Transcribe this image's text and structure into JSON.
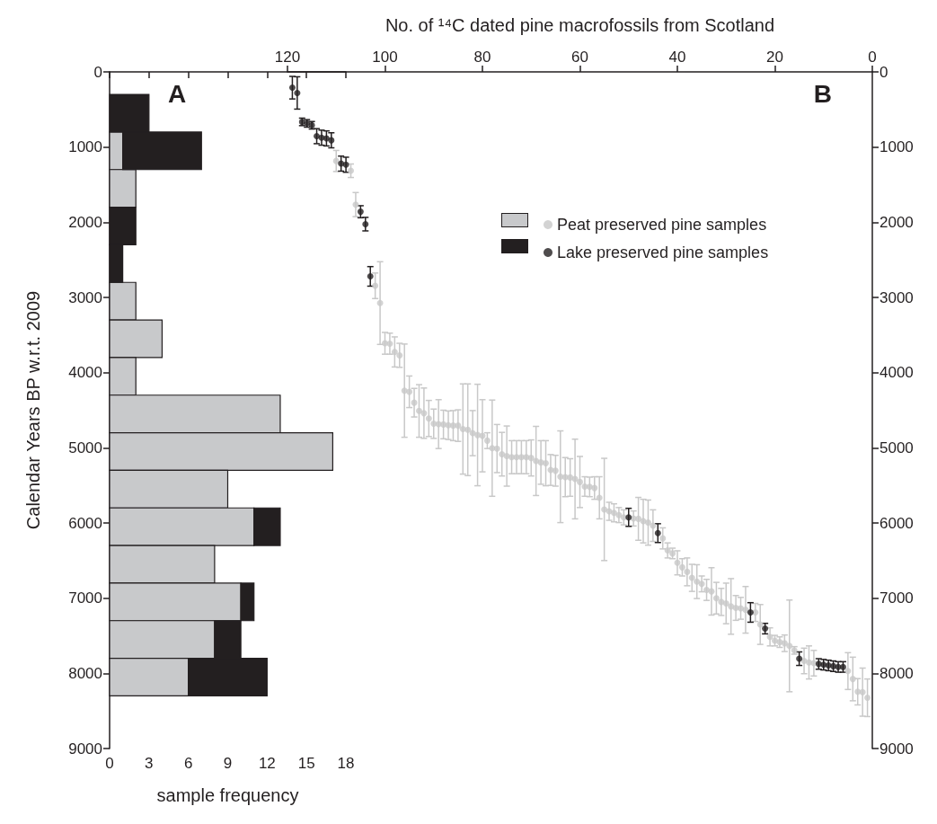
{
  "chart_data": [
    {
      "type": "bar",
      "orientation": "horizontal",
      "stacked": true,
      "xlabel": "sample frequency",
      "ylabel": "Calendar Years BP w.r.t. 2009",
      "x": [
        550,
        1050,
        1550,
        2050,
        2550,
        3050,
        3550,
        4050,
        4550,
        5050,
        5550,
        6050,
        6550,
        7050,
        7550,
        8050
      ],
      "series": [
        {
          "color": "#c8c9cb",
          "values": [
            0,
            1,
            2,
            0,
            0,
            2,
            4,
            2,
            13,
            17,
            9,
            11,
            8,
            10,
            8,
            6
          ]
        },
        {
          "color": "#231f20",
          "values": [
            3,
            6,
            0,
            2,
            1,
            0,
            0,
            0,
            0,
            0,
            0,
            2,
            0,
            1,
            2,
            6
          ]
        }
      ],
      "xlim": [
        0,
        18
      ],
      "xticks": [
        0,
        3,
        6,
        9,
        12,
        15,
        18
      ],
      "ylim": [
        9000,
        0
      ],
      "yticks": [
        0,
        1000,
        2000,
        3000,
        4000,
        5000,
        6000,
        7000,
        8000,
        9000
      ],
      "grid": false,
      "annotations": [
        "A"
      ]
    },
    {
      "type": "scatter",
      "xlabel": "No. of ¹⁴C dated pine macrofossils from Scotland",
      "marker": "circle",
      "series": [
        {
          "name": "Peat preserved pine samples",
          "color": "#c8c8c8",
          "x": [
            110,
            107,
            106,
            102,
            101,
            100,
            99,
            98,
            97,
            96,
            95,
            94,
            93,
            92,
            91,
            90,
            89,
            88,
            87,
            86,
            85,
            84,
            83,
            82,
            81,
            80,
            79,
            78,
            77,
            76,
            75,
            74,
            73,
            72,
            71,
            70,
            69,
            68,
            67,
            66,
            65,
            64,
            63,
            62,
            61,
            60,
            59,
            58,
            57,
            56,
            55,
            54,
            53,
            52,
            51,
            49,
            48,
            47,
            46,
            45,
            43,
            42,
            41,
            40,
            39,
            38,
            37,
            36,
            35,
            34,
            33,
            32,
            31,
            30,
            29,
            28,
            27,
            26,
            24,
            23,
            21,
            20,
            19,
            18,
            17,
            16,
            14,
            13,
            12,
            5,
            4,
            3,
            2,
            1
          ],
          "values": [
            1185,
            1315,
            1765,
            2845,
            3075,
            3610,
            3615,
            3725,
            3770,
            4240,
            4255,
            4400,
            4510,
            4540,
            4610,
            4680,
            4685,
            4690,
            4700,
            4705,
            4705,
            4750,
            4760,
            4805,
            4830,
            4840,
            4905,
            5005,
            5010,
            5085,
            5110,
            5125,
            5125,
            5125,
            5125,
            5135,
            5175,
            5195,
            5205,
            5295,
            5305,
            5385,
            5390,
            5395,
            5415,
            5455,
            5515,
            5520,
            5535,
            5665,
            5820,
            5845,
            5865,
            5895,
            5925,
            5940,
            5945,
            5975,
            5995,
            6035,
            6205,
            6365,
            6405,
            6530,
            6590,
            6650,
            6730,
            6780,
            6810,
            6890,
            6910,
            7000,
            7050,
            7070,
            7110,
            7130,
            7135,
            7155,
            7190,
            7350,
            7515,
            7565,
            7585,
            7600,
            7635,
            7695,
            7835,
            7855,
            7865,
            7970,
            8075,
            8245,
            8250,
            8325
          ],
          "errors": [
            140,
            90,
            160,
            170,
            550,
            145,
            140,
            200,
            160,
            620,
            210,
            190,
            350,
            335,
            240,
            195,
            325,
            190,
            190,
            200,
            210,
            600,
            610,
            300,
            675,
            480,
            105,
            640,
            320,
            290,
            400,
            220,
            220,
            220,
            220,
            240,
            460,
            290,
            300,
            205,
            205,
            610,
            260,
            250,
            530,
            340,
            130,
            130,
            150,
            280,
            680,
            120,
            120,
            100,
            100,
            100,
            285,
            290,
            300,
            210,
            140,
            100,
            70,
            160,
            115,
            185,
            180,
            225,
            105,
            140,
            315,
            210,
            180,
            270,
            370,
            165,
            145,
            310,
            120,
            265,
            120,
            70,
            70,
            110,
            610,
            50,
            170,
            220,
            170,
            245,
            290,
            175,
            320,
            250
          ]
        },
        {
          "name": "Lake preserved pine samples",
          "color": "#231f20",
          "x": [
            119,
            118,
            117,
            116,
            115,
            114,
            113,
            112,
            111,
            109,
            108,
            105,
            104,
            103,
            50,
            44,
            25,
            22,
            15,
            11,
            10,
            9,
            8,
            7,
            6
          ],
          "values": [
            210,
            280,
            665,
            685,
            710,
            855,
            875,
            885,
            910,
            1220,
            1235,
            1860,
            2025,
            2720,
            5925,
            6135,
            7190,
            7405,
            7805,
            7875,
            7885,
            7895,
            7905,
            7915,
            7915
          ],
          "errors": [
            150,
            215,
            50,
            50,
            50,
            100,
            100,
            100,
            100,
            100,
            100,
            80,
            90,
            130,
            120,
            125,
            130,
            70,
            90,
            70,
            70,
            70,
            70,
            70,
            70
          ]
        }
      ],
      "xlim": [
        120,
        0
      ],
      "xticks": [
        120,
        100,
        80,
        60,
        40,
        20,
        0
      ],
      "ylim": [
        9000,
        0
      ],
      "yticks": [
        0,
        1000,
        2000,
        3000,
        4000,
        5000,
        6000,
        7000,
        8000,
        9000
      ],
      "grid": false,
      "legend": "top right",
      "annotations": [
        "B"
      ]
    }
  ]
}
